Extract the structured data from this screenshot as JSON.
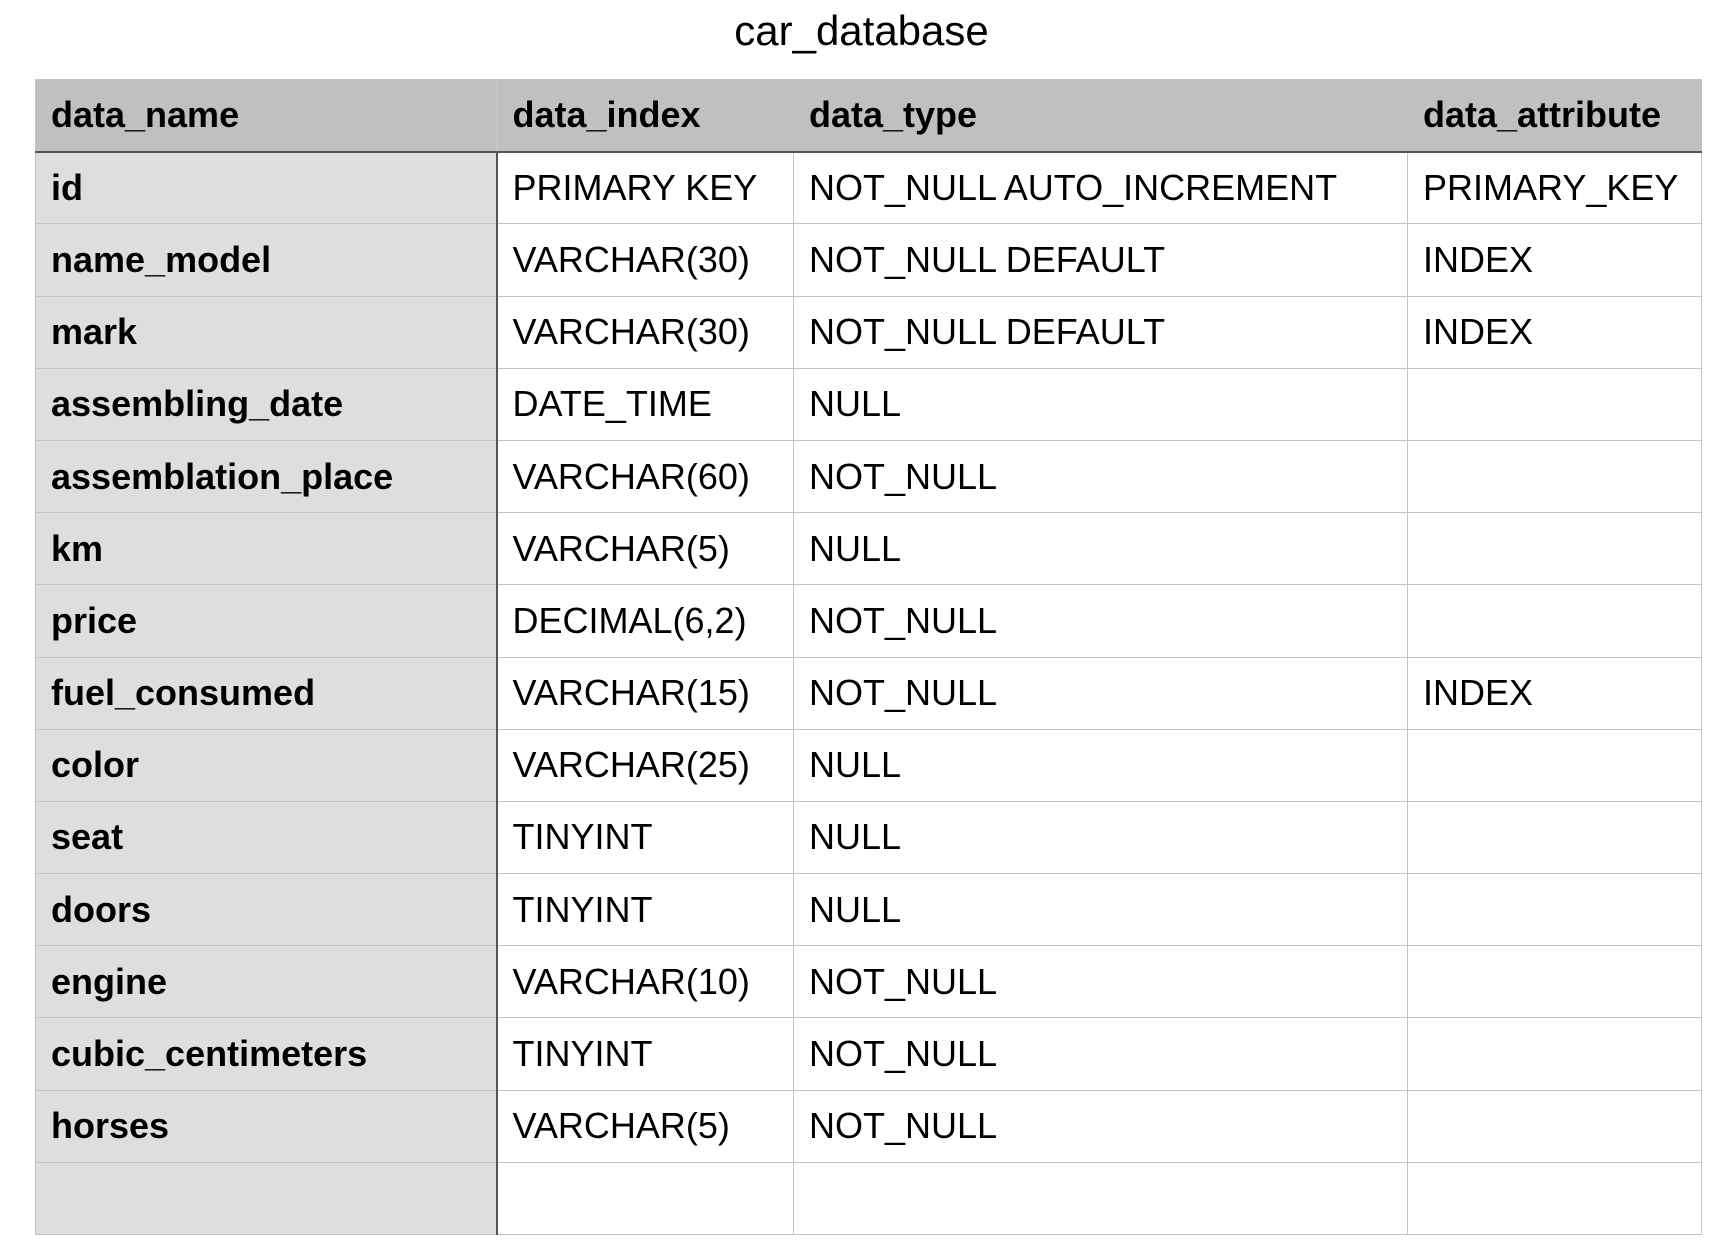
{
  "title": "car_database",
  "table": {
    "headers": [
      "data_name",
      "data_index",
      "data_type",
      "data_attribute"
    ],
    "rows": [
      [
        "id",
        "PRIMARY KEY",
        "NOT_NULL AUTO_INCREMENT",
        "PRIMARY_KEY"
      ],
      [
        "name_model",
        "VARCHAR(30)",
        "NOT_NULL DEFAULT",
        "INDEX"
      ],
      [
        "mark",
        "VARCHAR(30)",
        "NOT_NULL DEFAULT",
        "INDEX"
      ],
      [
        "assembling_date",
        "DATE_TIME",
        "NULL",
        ""
      ],
      [
        "assemblation_place",
        "VARCHAR(60)",
        "NOT_NULL",
        ""
      ],
      [
        "km",
        "VARCHAR(5)",
        "NULL",
        ""
      ],
      [
        "price",
        "DECIMAL(6,2)",
        "NOT_NULL",
        ""
      ],
      [
        "fuel_consumed",
        "VARCHAR(15)",
        "NOT_NULL",
        "INDEX"
      ],
      [
        "color",
        "VARCHAR(25)",
        "NULL",
        ""
      ],
      [
        "seat",
        "TINYINT",
        "NULL",
        ""
      ],
      [
        "doors",
        "TINYINT",
        "NULL",
        ""
      ],
      [
        "engine",
        "VARCHAR(10)",
        "NOT_NULL",
        ""
      ],
      [
        "cubic_centimeters",
        "TINYINT",
        "NOT_NULL",
        ""
      ],
      [
        "horses",
        "VARCHAR(5)",
        "NOT_NULL",
        ""
      ],
      [
        "",
        "",
        "",
        ""
      ]
    ]
  },
  "colors": {
    "header_bg": "#c0c0c0",
    "name_column_bg": "#dedede",
    "cell_bg": "#ffffff",
    "grid_line": "#c4c4c4",
    "divider_line": "#555555"
  }
}
